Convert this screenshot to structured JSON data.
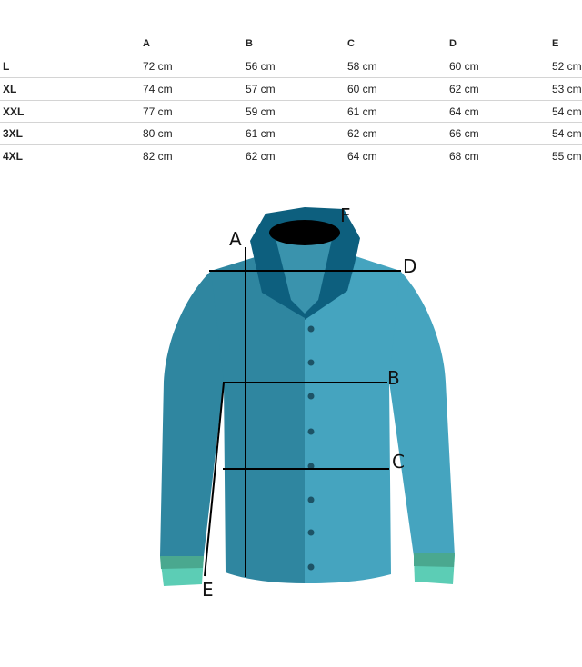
{
  "table": {
    "headers": [
      "",
      "A",
      "B",
      "C",
      "D",
      "E"
    ],
    "rows": [
      {
        "size": "L",
        "values": [
          "72 cm",
          "56 cm",
          "58 cm",
          "60 cm",
          "52 cm"
        ]
      },
      {
        "size": "XL",
        "values": [
          "74 cm",
          "57 cm",
          "60 cm",
          "62 cm",
          "53 cm"
        ]
      },
      {
        "size": "XXL",
        "values": [
          "77 cm",
          "59 cm",
          "61 cm",
          "64 cm",
          "54 cm"
        ]
      },
      {
        "size": "3XL",
        "values": [
          "80 cm",
          "61 cm",
          "62 cm",
          "66 cm",
          "54 cm"
        ]
      },
      {
        "size": "4XL",
        "values": [
          "82 cm",
          "62 cm",
          "64 cm",
          "68 cm",
          "55 cm"
        ]
      }
    ]
  },
  "diagram": {
    "labels": {
      "A": "A",
      "B": "B",
      "C": "C",
      "D": "D",
      "E": "E",
      "F": "F"
    },
    "colors": {
      "body_left": "#2f86a0",
      "body_right": "#45a4bf",
      "collar": "#0d5f7e",
      "cuff": "#5ccdb5",
      "cuff_band": "#4aa88f"
    }
  }
}
